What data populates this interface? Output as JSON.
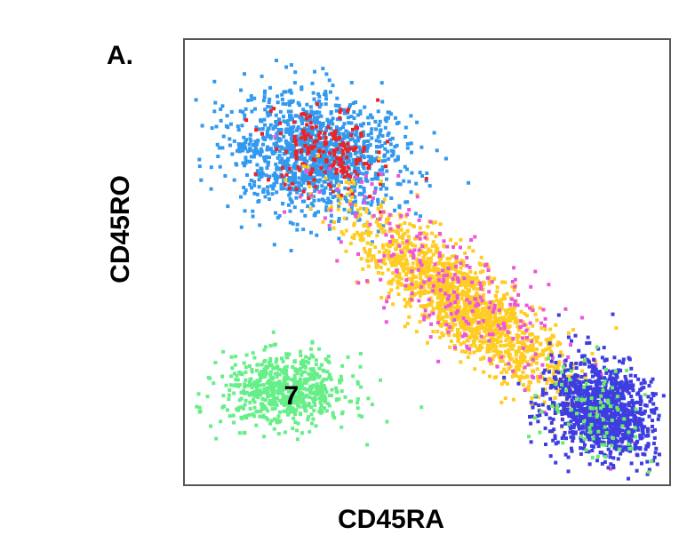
{
  "panel_label": "A.",
  "colors": {
    "blue": "#3399ee",
    "red": "#ee2222",
    "yellow": "#ffcc22",
    "magenta": "#ee55dd",
    "navy": "#3d3de0",
    "green": "#66ee66",
    "lightgreen": "#66ee88"
  },
  "chart_data": {
    "type": "scatter",
    "title": "",
    "xlabel": "CD45RA",
    "ylabel": "CD45RO",
    "xlim": [
      0,
      100
    ],
    "ylim": [
      0,
      100
    ],
    "grid": false,
    "legend": "none",
    "annotations": [
      {
        "text": "7",
        "x": 22,
        "y": 20
      }
    ],
    "series": [
      {
        "name": "cluster-blue",
        "color": "#3399ee",
        "center": [
          27,
          74
        ],
        "spread": [
          9,
          6.5
        ],
        "n": 1300,
        "rotation": -15
      },
      {
        "name": "cluster-red",
        "color": "#ee2222",
        "center": [
          29,
          74
        ],
        "spread": [
          6,
          4.5
        ],
        "n": 190,
        "rotation": -15
      },
      {
        "name": "cluster-yellow",
        "color": "#ffcc22",
        "center": [
          57,
          41
        ],
        "spread": [
          14.5,
          4
        ],
        "n": 1500,
        "rotation": -42
      },
      {
        "name": "cluster-magenta",
        "color": "#ee55dd",
        "center": [
          55,
          44
        ],
        "spread": [
          17,
          6
        ],
        "n": 260,
        "rotation": -42
      },
      {
        "name": "cluster-navy",
        "color": "#3d3de0",
        "center": [
          86,
          17
        ],
        "spread": [
          6,
          5
        ],
        "n": 1100,
        "rotation": -40
      },
      {
        "name": "cluster-lime",
        "color": "#66ee66",
        "center": [
          85,
          16
        ],
        "spread": [
          6.5,
          5.5
        ],
        "n": 90,
        "rotation": -40
      },
      {
        "name": "cluster-green",
        "color": "#66ee88",
        "center": [
          21,
          21
        ],
        "spread": [
          6.5,
          4
        ],
        "n": 650,
        "rotation": 0
      }
    ]
  }
}
